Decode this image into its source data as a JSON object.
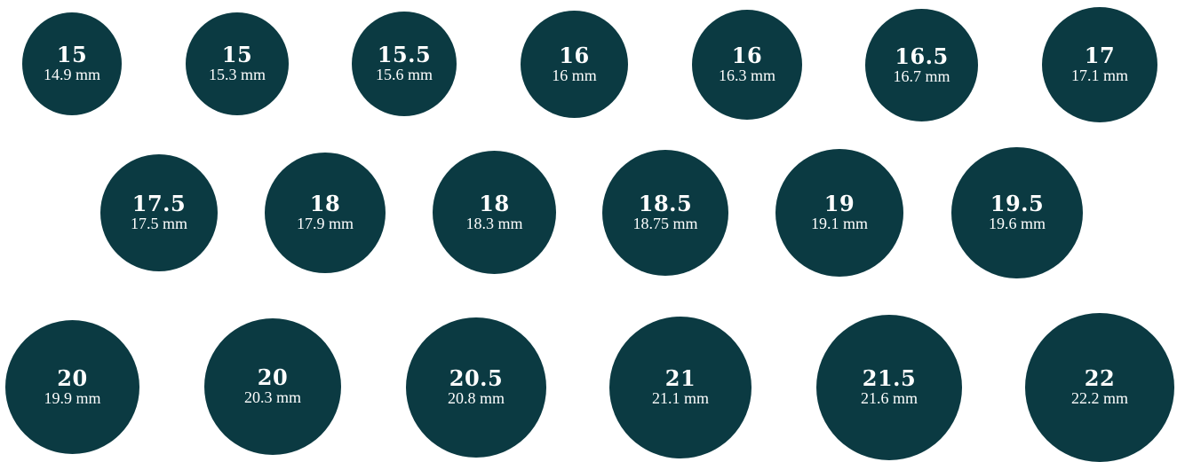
{
  "ring_sizes": [
    {
      "size": "15",
      "diameter": "14.9 mm"
    },
    {
      "size": "15",
      "diameter": "15.3 mm"
    },
    {
      "size": "15.5",
      "diameter": "15.6 mm"
    },
    {
      "size": "16",
      "diameter": "16 mm"
    },
    {
      "size": "16",
      "diameter": "16.3 mm"
    },
    {
      "size": "16.5",
      "diameter": "16.7 mm"
    },
    {
      "size": "17",
      "diameter": "17.1 mm"
    },
    {
      "size": "17.5",
      "diameter": "17.5 mm"
    },
    {
      "size": "18",
      "diameter": "17.9 mm"
    },
    {
      "size": "18",
      "diameter": "18.3 mm"
    },
    {
      "size": "18.5",
      "diameter": "18.75 mm"
    },
    {
      "size": "19",
      "diameter": "19.1 mm"
    },
    {
      "size": "19.5",
      "diameter": "19.6 mm"
    },
    {
      "size": "20",
      "diameter": "19.9 mm"
    },
    {
      "size": "20",
      "diameter": "20.3 mm"
    },
    {
      "size": "20.5",
      "diameter": "20.8 mm"
    },
    {
      "size": "21",
      "diameter": "21.1 mm"
    },
    {
      "size": "21.5",
      "diameter": "21.6 mm"
    },
    {
      "size": "22",
      "diameter": "22.2 mm"
    }
  ],
  "colors": {
    "circle_fill": "#0b3a42",
    "text": "#ffffff",
    "background": "#ffffff"
  }
}
